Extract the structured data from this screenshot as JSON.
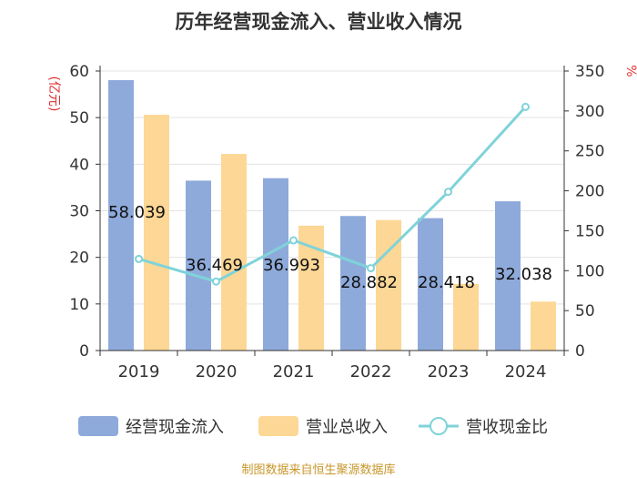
{
  "chart_data": {
    "type": "bar",
    "title": "历年经营现金流入、营业收入情况",
    "categories": [
      "2019",
      "2020",
      "2021",
      "2022",
      "2023",
      "2024"
    ],
    "y_left": {
      "unit_label": "(亿元)",
      "ticks": [
        "0",
        "10",
        "20",
        "30",
        "40",
        "50",
        "60"
      ],
      "ylim": [
        0,
        60
      ]
    },
    "y_right": {
      "unit_label": "%",
      "ticks": [
        "0",
        "50",
        "100",
        "150",
        "200",
        "250",
        "300",
        "350"
      ],
      "ylim": [
        0,
        350
      ]
    },
    "series": [
      {
        "name": "经营现金流入",
        "type": "bar",
        "axis": "left",
        "color": "#8eaadb",
        "values": [
          58.039,
          36.469,
          36.993,
          28.882,
          28.418,
          32.038
        ],
        "labels": [
          "58.039",
          "36.469",
          "36.993",
          "28.882",
          "28.418",
          "32.038"
        ]
      },
      {
        "name": "营业总收入",
        "type": "bar",
        "axis": "left",
        "color": "#fdd795",
        "values": [
          50.6,
          42.2,
          26.8,
          28.0,
          14.3,
          10.5
        ]
      },
      {
        "name": "营收现金比",
        "type": "line",
        "axis": "right",
        "color": "#7fd3d9",
        "values": [
          114.7,
          86.4,
          138.0,
          103.1,
          198.7,
          305.1
        ]
      }
    ],
    "legend_position": "bottom",
    "source": "制图数据来自恒生聚源数据库"
  }
}
